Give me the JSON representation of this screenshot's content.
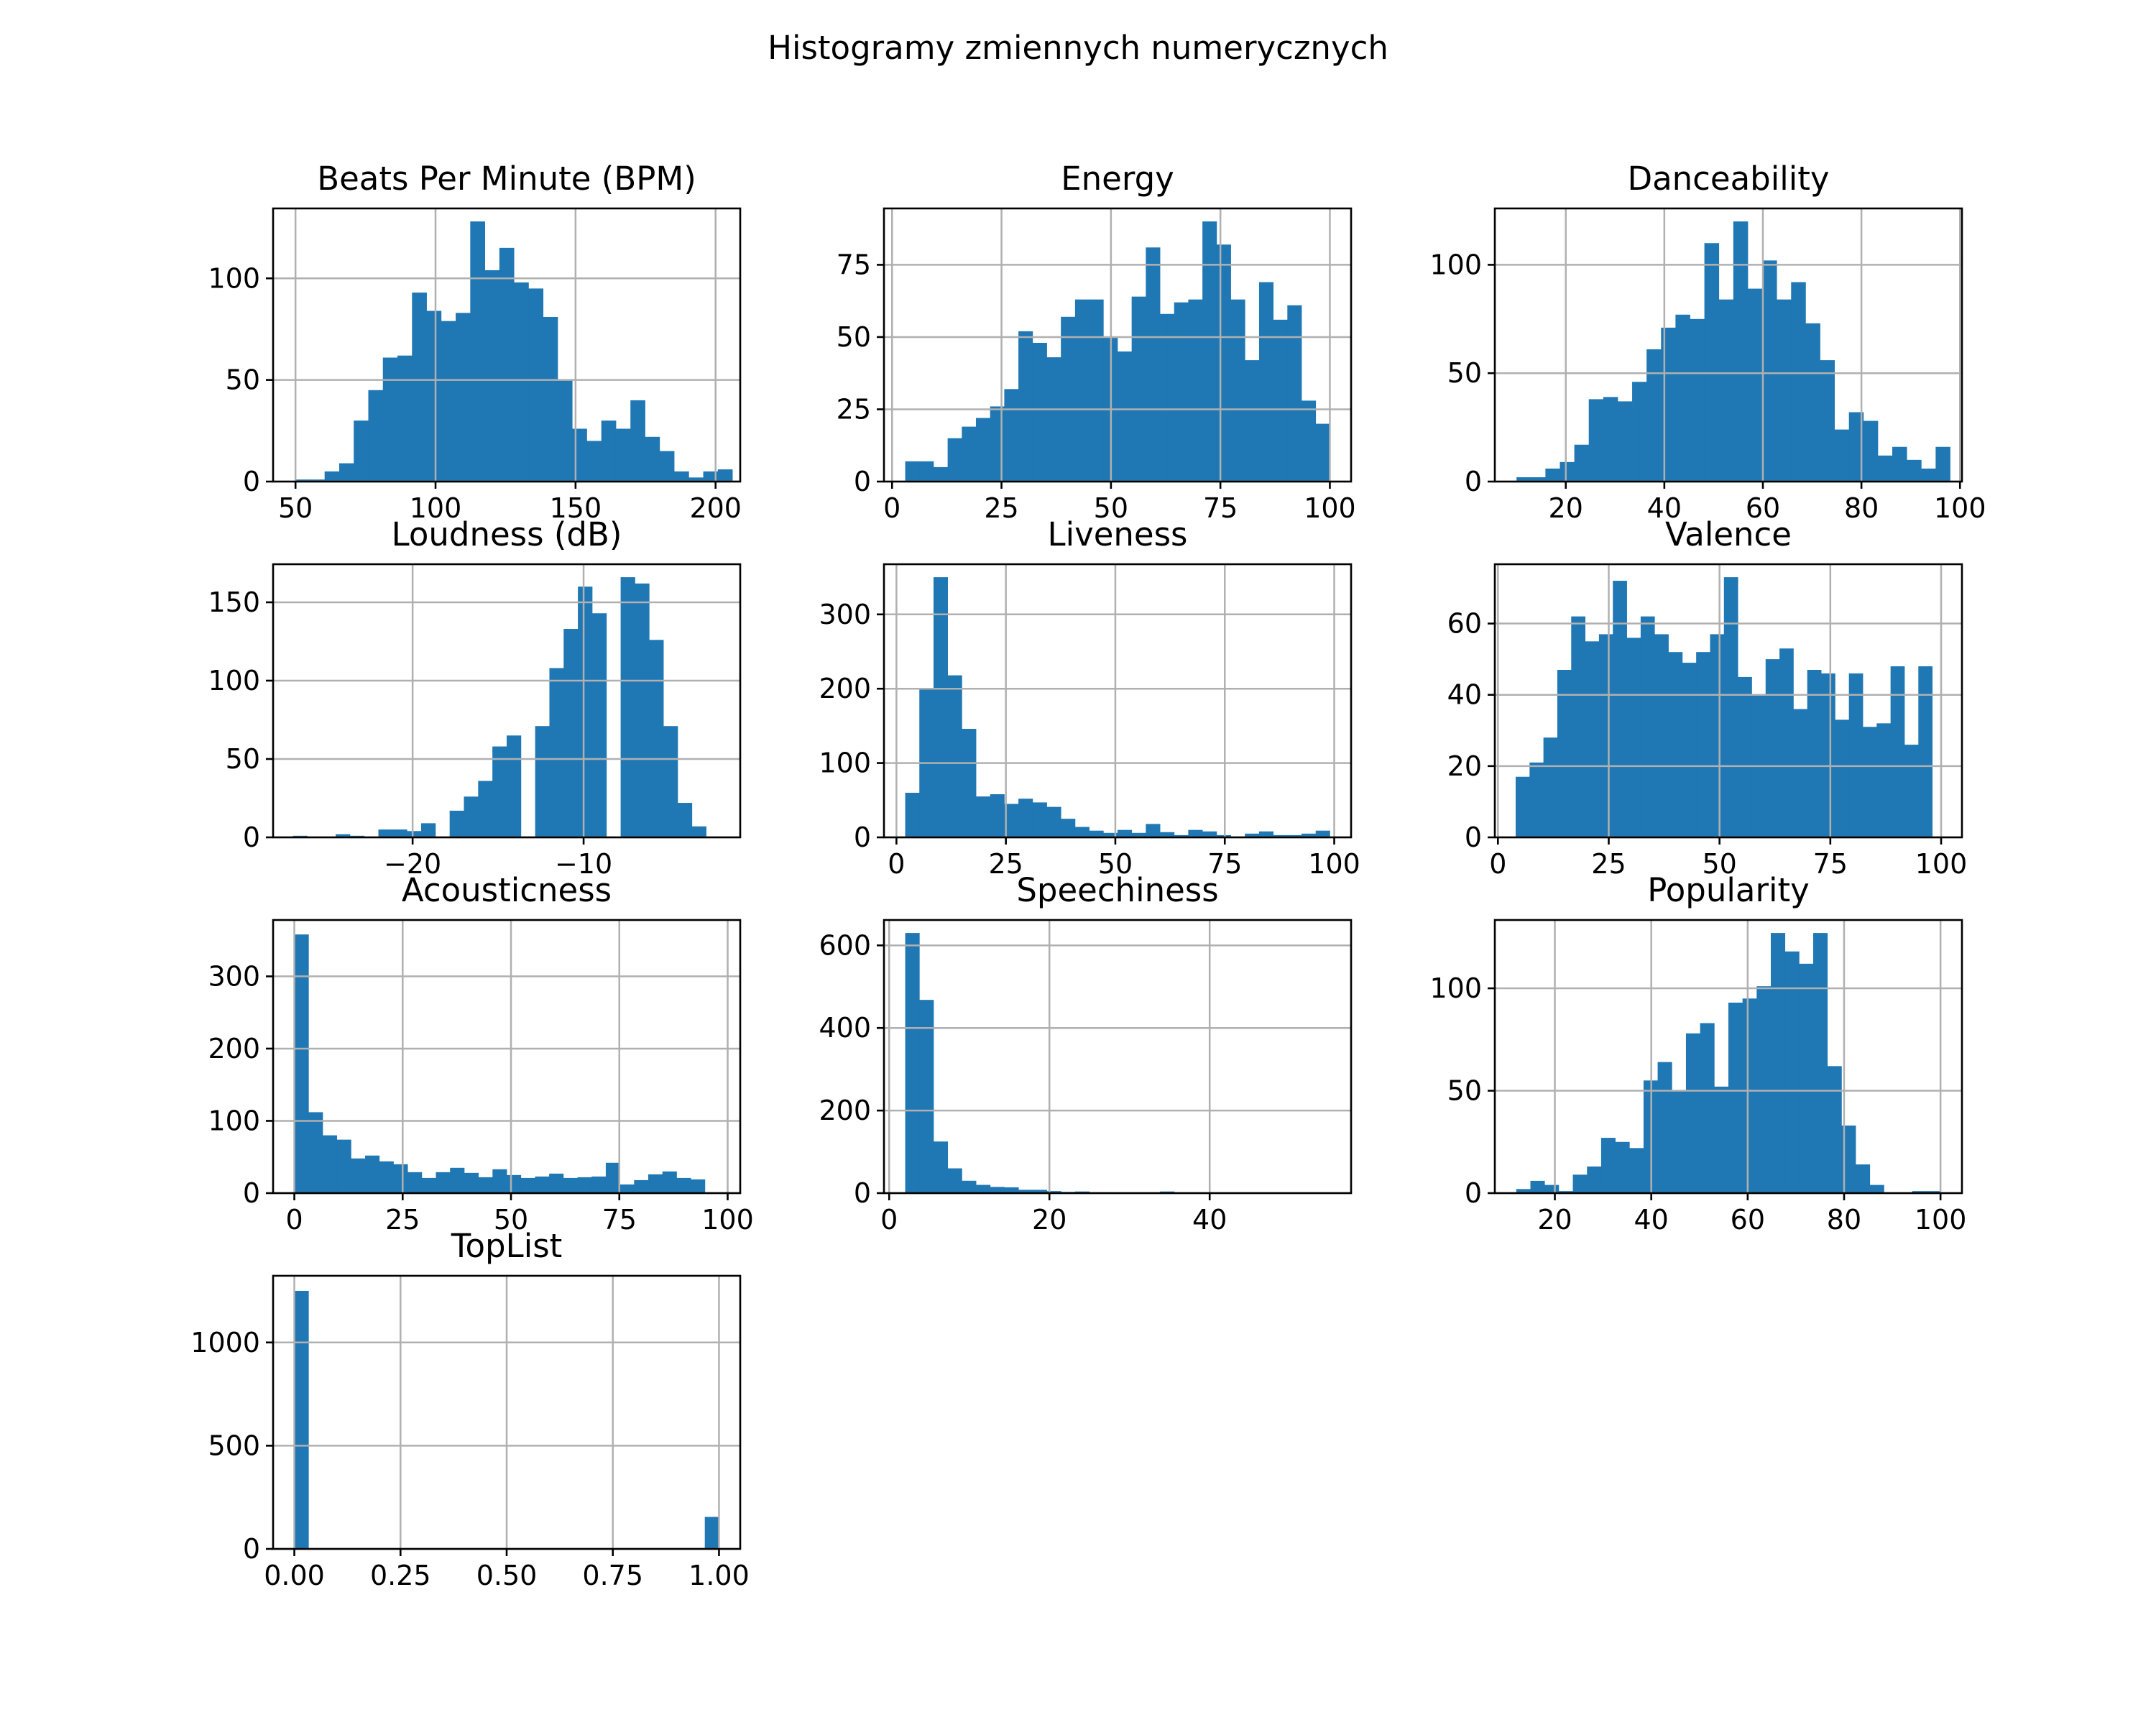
{
  "figure": {
    "suptitle": "Histogramy zmiennych numerycznych"
  },
  "chart_data": [
    {
      "type": "bar",
      "title": "Beats Per Minute (BPM)",
      "xlim": [
        42,
        208.8
      ],
      "ylim": [
        0,
        134.4
      ],
      "xticks": [
        50,
        100,
        150,
        200
      ],
      "yticks": [
        0,
        50,
        100
      ],
      "xtick_labels": [
        "50",
        "100",
        "150",
        "200"
      ],
      "ytick_labels": [
        "0",
        "50",
        "100"
      ],
      "bin_start": 50,
      "bin_width": 5.2,
      "values": [
        1,
        1,
        5,
        9,
        30,
        45,
        61,
        62,
        93,
        84,
        79,
        83,
        128,
        104,
        115,
        98,
        95,
        81,
        50,
        26,
        20,
        30,
        26,
        40,
        22,
        15,
        5,
        2,
        5,
        6
      ]
    },
    {
      "type": "bar",
      "title": "Energy",
      "xlim": [
        -1.85,
        104.85
      ],
      "ylim": [
        0,
        94.5
      ],
      "xticks": [
        0,
        25,
        50,
        75,
        100
      ],
      "yticks": [
        0,
        25,
        50,
        75
      ],
      "xtick_labels": [
        "0",
        "25",
        "50",
        "75",
        "100"
      ],
      "ytick_labels": [
        "0",
        "25",
        "50",
        "75"
      ],
      "bin_start": 3,
      "bin_width": 3.233,
      "values": [
        7,
        7,
        5,
        15,
        19,
        22,
        26,
        32,
        52,
        48,
        43,
        57,
        63,
        63,
        50,
        45,
        64,
        81,
        58,
        62,
        63,
        90,
        82,
        63,
        42,
        69,
        56,
        61,
        28,
        20
      ]
    },
    {
      "type": "bar",
      "title": "Danceability",
      "xlim": [
        5.6,
        100.4
      ],
      "ylim": [
        0,
        126
      ],
      "xticks": [
        20,
        40,
        60,
        80,
        100
      ],
      "yticks": [
        0,
        50,
        100
      ],
      "xtick_labels": [
        "20",
        "40",
        "60",
        "80",
        "100"
      ],
      "ytick_labels": [
        "0",
        "50",
        "100"
      ],
      "bin_start": 10,
      "bin_width": 2.933,
      "values": [
        2,
        2,
        6,
        9,
        17,
        38,
        39,
        37,
        46,
        61,
        71,
        77,
        75,
        110,
        84,
        120,
        89,
        102,
        84,
        92,
        73,
        56,
        24,
        32,
        28,
        12,
        16,
        10,
        6,
        16
      ]
    },
    {
      "type": "bar",
      "title": "Loudness (dB)",
      "xlim": [
        -28.16,
        -0.84
      ],
      "ylim": [
        0,
        174.3
      ],
      "xticks": [
        -20,
        -10
      ],
      "yticks": [
        0,
        50,
        100,
        150
      ],
      "xtick_labels": [
        "−20",
        "−10"
      ],
      "ytick_labels": [
        "0",
        "50",
        "100",
        "150"
      ],
      "bin_start": -27,
      "bin_width": 0.8333,
      "values": [
        1,
        0,
        0,
        2,
        1,
        0,
        5,
        5,
        4,
        9,
        0,
        17,
        26,
        36,
        58,
        65,
        0,
        71,
        108,
        133,
        160,
        143,
        0,
        166,
        162,
        126,
        71,
        22,
        7,
        0
      ]
    },
    {
      "type": "bar",
      "title": "Liveness",
      "xlim": [
        -2.85,
        103.85
      ],
      "ylim": [
        0,
        367.5
      ],
      "xticks": [
        0,
        25,
        50,
        75,
        100
      ],
      "yticks": [
        0,
        100,
        200,
        300
      ],
      "xtick_labels": [
        "0",
        "25",
        "50",
        "75",
        "100"
      ],
      "ytick_labels": [
        "0",
        "100",
        "200",
        "300"
      ],
      "bin_start": 2,
      "bin_width": 3.233,
      "values": [
        60,
        201,
        350,
        218,
        146,
        55,
        58,
        45,
        52,
        47,
        41,
        25,
        14,
        9,
        6,
        10,
        6,
        18,
        7,
        3,
        10,
        8,
        3,
        0,
        5,
        8,
        3,
        3,
        5,
        9
      ]
    },
    {
      "type": "bar",
      "title": "Valence",
      "xlim": [
        -0.7,
        104.7
      ],
      "ylim": [
        0,
        76.65
      ],
      "xticks": [
        0,
        25,
        50,
        75,
        100
      ],
      "yticks": [
        0,
        20,
        40,
        60
      ],
      "xtick_labels": [
        "0",
        "25",
        "50",
        "75",
        "100"
      ],
      "ytick_labels": [
        "0",
        "20",
        "40",
        "60"
      ],
      "bin_start": 4,
      "bin_width": 3.133,
      "values": [
        17,
        21,
        28,
        47,
        62,
        55,
        57,
        72,
        56,
        62,
        57,
        52,
        49,
        52,
        57,
        73,
        45,
        40,
        50,
        53,
        36,
        47,
        46,
        33,
        46,
        31,
        32,
        48,
        26,
        48
      ]
    },
    {
      "type": "bar",
      "title": "Acousticness",
      "xlim": [
        -4.9,
        102.9
      ],
      "ylim": [
        0,
        378
      ],
      "xticks": [
        0,
        25,
        50,
        75,
        100
      ],
      "yticks": [
        0,
        100,
        200,
        300
      ],
      "xtick_labels": [
        "0",
        "25",
        "50",
        "75",
        "100"
      ],
      "ytick_labels": [
        "0",
        "100",
        "200",
        "300"
      ],
      "bin_start": 0,
      "bin_width": 3.267,
      "values": [
        358,
        112,
        80,
        74,
        48,
        52,
        44,
        40,
        29,
        21,
        29,
        35,
        28,
        22,
        33,
        25,
        21,
        23,
        27,
        21,
        22,
        23,
        42,
        12,
        18,
        26,
        30,
        21,
        19,
        0
      ]
    },
    {
      "type": "bar",
      "title": "Speechiness",
      "xlim": [
        -0.65,
        57.65
      ],
      "ylim": [
        0,
        661.5
      ],
      "xticks": [
        0,
        20,
        40
      ],
      "yticks": [
        0,
        200,
        400,
        600
      ],
      "xtick_labels": [
        "0",
        "20",
        "40"
      ],
      "ytick_labels": [
        "0",
        "200",
        "400",
        "600"
      ],
      "bin_start": 2,
      "bin_width": 1.767,
      "values": [
        630,
        468,
        125,
        60,
        30,
        20,
        15,
        14,
        8,
        8,
        5,
        3,
        4,
        2,
        2,
        1,
        1,
        1,
        4,
        1,
        1,
        1,
        0,
        0,
        1,
        0,
        0,
        0,
        0,
        1
      ]
    },
    {
      "type": "bar",
      "title": "Popularity",
      "xlim": [
        7.55,
        104.45
      ],
      "ylim": [
        0,
        133.35
      ],
      "xticks": [
        20,
        40,
        60,
        80,
        100
      ],
      "yticks": [
        0,
        50,
        100
      ],
      "xtick_labels": [
        "20",
        "40",
        "60",
        "80",
        "100"
      ],
      "ytick_labels": [
        "0",
        "50",
        "100"
      ],
      "bin_start": 12,
      "bin_width": 2.933,
      "values": [
        2,
        6,
        4,
        1,
        9,
        13,
        27,
        25,
        22,
        55,
        64,
        50,
        78,
        83,
        52,
        93,
        95,
        101,
        127,
        118,
        112,
        127,
        62,
        33,
        14,
        4,
        0,
        0,
        1,
        1
      ]
    },
    {
      "type": "bar",
      "title": "TopList",
      "xlim": [
        -0.05,
        1.05
      ],
      "ylim": [
        0,
        1323
      ],
      "xticks": [
        0,
        0.25,
        0.5,
        0.75,
        1.0
      ],
      "yticks": [
        0,
        500,
        1000
      ],
      "xtick_labels": [
        "0.00",
        "0.25",
        "0.50",
        "0.75",
        "1.00"
      ],
      "ytick_labels": [
        "0",
        "500",
        "1000"
      ],
      "bin_start": 0,
      "bin_width": 0.03333,
      "values": [
        1250,
        0,
        0,
        0,
        0,
        0,
        0,
        0,
        0,
        0,
        0,
        0,
        0,
        0,
        0,
        0,
        0,
        0,
        0,
        0,
        0,
        0,
        0,
        0,
        0,
        0,
        0,
        0,
        0,
        155
      ]
    }
  ]
}
